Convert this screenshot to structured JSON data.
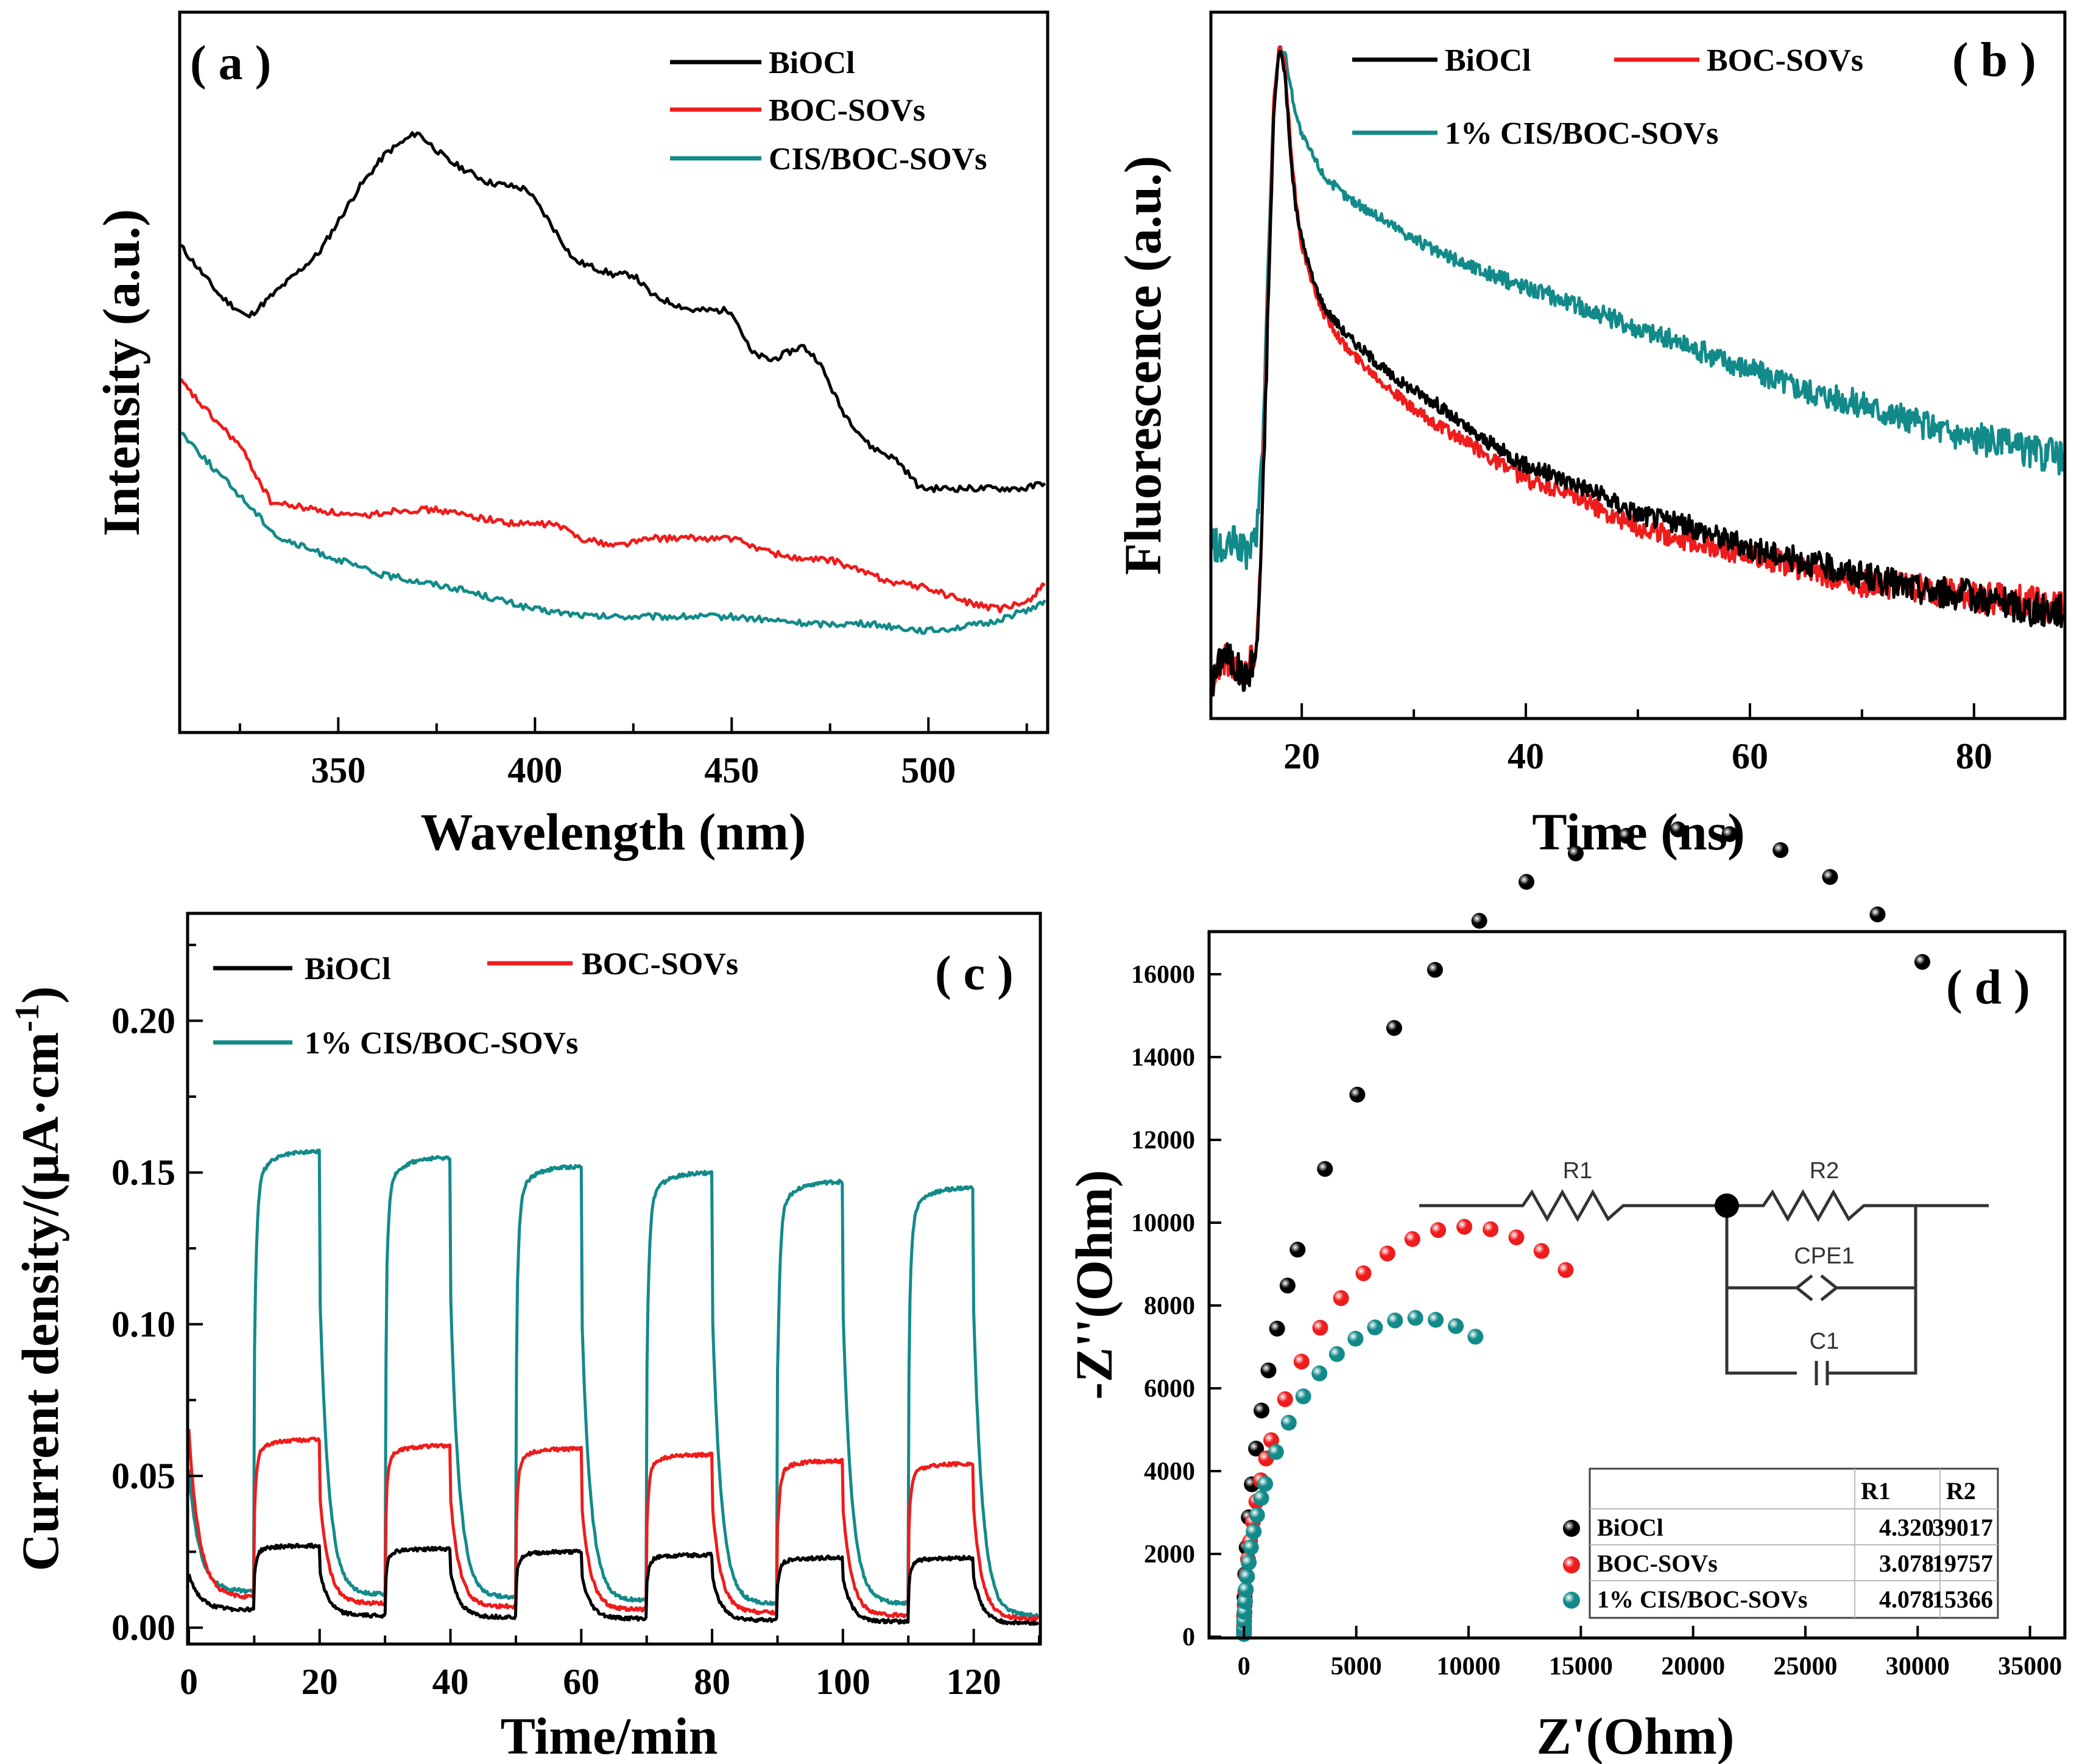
{
  "colors": {
    "BiOCl": "#000000",
    "BOC-SOVs": "#ee1c1c",
    "CIS/BOC-SOVs": "#138a8a"
  },
  "chart_data": [
    {
      "panel": "( a )",
      "type": "line",
      "title": "",
      "xlabel": "Wavelength (nm)",
      "ylabel": "Intensity (a.u.)",
      "xlim": [
        310,
        530
      ],
      "ylim": [
        0,
        100
      ],
      "xticks": [
        350,
        400,
        450,
        500
      ],
      "legend": [
        "BiOCl",
        "BOC-SOVs",
        "CIS/BOC-SOVs"
      ],
      "series": [
        {
          "name": "BiOCl",
          "color_key": "BiOCl",
          "x": [
            310,
            320,
            327,
            335,
            345,
            355,
            362,
            370,
            378,
            388,
            398,
            403,
            410,
            420,
            425,
            430,
            440,
            450,
            455,
            460,
            468,
            472,
            478,
            485,
            492,
            498,
            505,
            515,
            525,
            530
          ],
          "y": [
            68,
            61,
            58,
            62,
            67,
            76,
            81,
            84,
            80,
            77,
            76,
            72,
            66,
            64,
            64,
            61,
            59,
            59,
            53,
            52,
            54,
            52,
            45,
            40,
            38,
            34,
            34,
            34,
            34,
            35
          ]
        },
        {
          "name": "BOC-SOVs",
          "color_key": "BOC-SOVs",
          "x": [
            310,
            318,
            325,
            333,
            345,
            355,
            365,
            375,
            385,
            395,
            400,
            405,
            412,
            420,
            430,
            440,
            450,
            460,
            468,
            475,
            480,
            490,
            500,
            510,
            518,
            525,
            530
          ],
          "y": [
            49,
            44,
            40,
            32,
            31,
            30,
            31,
            31,
            30,
            29,
            29,
            29,
            27,
            26,
            27,
            27,
            27,
            25,
            24,
            24,
            23,
            21,
            20,
            18,
            17,
            18,
            21
          ]
        },
        {
          "name": "CIS/BOC-SOVs",
          "color_key": "CIS/BOC-SOVs",
          "x": [
            310,
            318,
            325,
            335,
            345,
            360,
            380,
            400,
            415,
            430,
            450,
            470,
            485,
            500,
            515,
            525,
            530
          ],
          "y": [
            42,
            37,
            33,
            27,
            25,
            22,
            20,
            17,
            16,
            16,
            16,
            15,
            15,
            14,
            15,
            17,
            18
          ]
        }
      ]
    },
    {
      "panel": "( b )",
      "type": "line",
      "title": "",
      "xlabel": "Time (ns)",
      "ylabel": "Fluorescence (a.u.)",
      "xlim": [
        12,
        88
      ],
      "ylim": [
        0,
        100
      ],
      "xticks": [
        20,
        40,
        60,
        80
      ],
      "legend": [
        "BiOCl",
        "BOC-SOVs",
        "1% CIS/BOC-SOVs"
      ],
      "series": [
        {
          "name": "BiOCl",
          "color_key": "BiOCl",
          "x": [
            12,
            13,
            14,
            15,
            16,
            16.5,
            17,
            17.5,
            18,
            18.5,
            19,
            19.5,
            20,
            21,
            22,
            24,
            26,
            28,
            30,
            32,
            35,
            38,
            40,
            45,
            50,
            55,
            60,
            65,
            70,
            75,
            80,
            85,
            88
          ],
          "y": [
            3,
            8,
            6,
            4,
            8,
            28,
            58,
            86,
            96,
            92,
            80,
            72,
            68,
            62,
            58,
            54,
            51,
            48,
            46,
            44,
            40,
            37,
            35,
            32,
            28,
            26,
            23,
            21,
            19,
            17,
            16,
            14,
            14
          ]
        },
        {
          "name": "BOC-SOVs",
          "color_key": "BOC-SOVs",
          "x": [
            12,
            13,
            14,
            15,
            16,
            16.5,
            17,
            17.5,
            18,
            18.5,
            19,
            19.5,
            20,
            21,
            22,
            24,
            26,
            28,
            30,
            32,
            35,
            38,
            40,
            45,
            50,
            55,
            60,
            65,
            70,
            75,
            80,
            85,
            88
          ],
          "y": [
            4,
            7,
            6,
            5,
            9,
            30,
            60,
            88,
            96,
            93,
            82,
            73,
            67,
            61,
            57,
            52,
            49,
            46,
            43,
            41,
            38,
            35,
            33,
            30,
            26,
            24,
            22,
            20,
            18,
            17,
            16,
            15,
            14
          ]
        },
        {
          "name": "1% CIS/BOC-SOVs",
          "color_key": "CIS/BOC-SOVs",
          "x": [
            12,
            13,
            14,
            15,
            16,
            16.5,
            17,
            17.5,
            18,
            18.5,
            19,
            19.5,
            20,
            21,
            22,
            24,
            26,
            28,
            30,
            32,
            35,
            38,
            40,
            45,
            50,
            55,
            60,
            65,
            70,
            75,
            80,
            85,
            88
          ],
          "y": [
            24,
            22,
            24,
            22,
            25,
            38,
            64,
            88,
            96,
            95,
            90,
            86,
            83,
            80,
            77,
            74,
            72,
            70,
            68,
            66,
            64,
            62,
            61,
            58,
            55,
            52,
            49,
            46,
            44,
            41,
            39,
            37,
            36
          ]
        }
      ]
    },
    {
      "panel": "( c )",
      "type": "line",
      "title": "",
      "xlabel": "Time/min",
      "ylabel": "Current density/(μA·cm",
      "ylabel_sup": "-1",
      "ylabel_close": ")",
      "xlim": [
        0,
        130
      ],
      "ylim": [
        -0.005,
        0.235
      ],
      "xticks": [
        0,
        20,
        40,
        60,
        80,
        100,
        120
      ],
      "yticks": [
        "0.00",
        "0.05",
        "0.10",
        "0.15",
        "0.20"
      ],
      "light_on_times": [
        10,
        30,
        50,
        70,
        90,
        110
      ],
      "light_off_times": [
        20,
        40,
        60,
        80,
        100,
        120
      ],
      "legend": [
        "BiOCl",
        "BOC-SOVs",
        "1% CIS/BOC-SOVs"
      ],
      "series": [
        {
          "name": "BiOCl",
          "color_key": "BiOCl",
          "initial": 0.018,
          "dark_level": [
            0.006,
            0.004,
            0.0035,
            0.003,
            0.0025,
            0.002,
            0.0015
          ],
          "on_level": [
            0.027,
            0.026,
            0.025,
            0.024,
            0.023,
            0.023
          ]
        },
        {
          "name": "BOC-SOVs",
          "color_key": "BOC-SOVs",
          "initial": 0.065,
          "dark_level": [
            0.01,
            0.008,
            0.007,
            0.006,
            0.005,
            0.004,
            0.003
          ],
          "on_level": [
            0.062,
            0.06,
            0.059,
            0.057,
            0.055,
            0.054
          ]
        },
        {
          "name": "1% CIS/BOC-SOVs",
          "color_key": "CIS/BOC-SOVs",
          "initial": 0.052,
          "dark_level": [
            0.012,
            0.011,
            0.01,
            0.009,
            0.008,
            0.008,
            0.004
          ],
          "on_level": [
            0.157,
            0.155,
            0.152,
            0.15,
            0.147,
            0.145
          ]
        }
      ]
    },
    {
      "panel": "( d )",
      "type": "scatter",
      "title": "",
      "xlabel": "Z'(Ohm)",
      "ylabel": "-Z''(Ohm)",
      "xlim": [
        -1500,
        36500
      ],
      "ylim": [
        0,
        17000
      ],
      "xticks": [
        0,
        5000,
        10000,
        15000,
        20000,
        25000,
        30000,
        35000
      ],
      "yticks": [
        0,
        2000,
        4000,
        6000,
        8000,
        10000,
        12000,
        14000,
        16000
      ],
      "series": [
        {
          "name": "BiOCl",
          "color_key": "BiOCl",
          "center": 19500,
          "radius": 19500,
          "t_max_deg": 128
        },
        {
          "name": "BOC-SOVs",
          "color_key": "BOC-SOVs",
          "center": 9900,
          "radius": 9900,
          "t_max_deg": 122
        },
        {
          "name": "1% CIS/BOC-SOVs",
          "color_key": "CIS/BOC-SOVs",
          "center": 7700,
          "radius": 7700,
          "t_max_deg": 114
        }
      ],
      "circuit_labels": {
        "r1": "R1",
        "r2": "R2",
        "cpe": "CPE1",
        "c": "C1"
      },
      "fit_table": {
        "headers": [
          "",
          "R1",
          "R2"
        ],
        "rows": [
          {
            "name": "BiOCl",
            "color_key": "BiOCl",
            "R1": "4.320",
            "R2": "39017"
          },
          {
            "name": "BOC-SOVs",
            "color_key": "BOC-SOVs",
            "R1": "3.078",
            "R2": "19757"
          },
          {
            "name": "1% CIS/BOC-SOVs",
            "color_key": "CIS/BOC-SOVs",
            "R1": "4.078",
            "R2": "15366"
          }
        ]
      }
    }
  ]
}
